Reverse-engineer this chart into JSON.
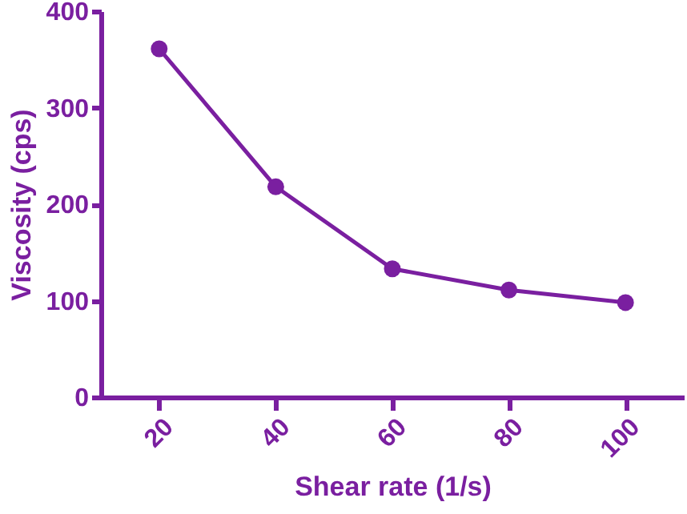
{
  "chart_data": {
    "type": "line",
    "xlabel": "Shear rate (1/s)",
    "ylabel": "Viscosity (cps)",
    "x": [
      20,
      40,
      60,
      80,
      100
    ],
    "series": [
      {
        "color": "#7a1fa0",
        "values": [
          361,
          218,
          133,
          111,
          98
        ]
      }
    ],
    "xlim": [
      10,
      110
    ],
    "xticks": [
      20,
      40,
      60,
      80,
      100
    ],
    "ylim": [
      0,
      400
    ],
    "yticks": [
      0,
      100,
      200,
      300,
      400
    ],
    "grid": false,
    "marker": "circle",
    "line_style": "solid"
  }
}
